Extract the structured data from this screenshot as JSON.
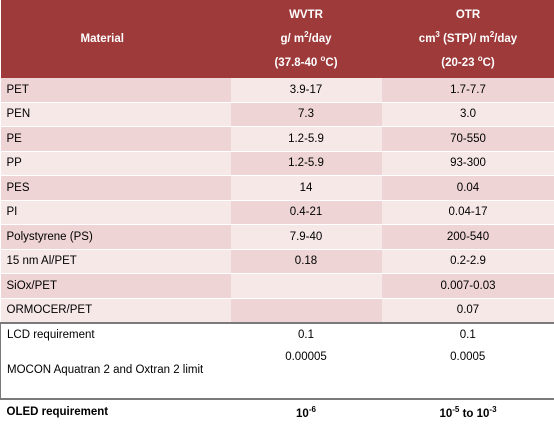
{
  "header": {
    "material": "Material",
    "wvtr_line1": "WVTR",
    "wvtr_line2": "g/ m",
    "wvtr_line2_sup": "2",
    "wvtr_line2_tail": "/day",
    "wvtr_line3": "(37.8-40 ",
    "wvtr_line3_sup": "o",
    "wvtr_line3_tail": "C)",
    "otr_line1": "OTR",
    "otr_line2_a": "cm",
    "otr_line2_sup1": "3",
    "otr_line2_b": " (STP)/ m",
    "otr_line2_sup2": "2",
    "otr_line2_tail": "/day",
    "otr_line3": "(20-23 ",
    "otr_line3_sup": "o",
    "otr_line3_tail": "C)"
  },
  "rows": [
    {
      "material": "PET",
      "wvtr": "3.9-17",
      "otr": "1.7-7.7"
    },
    {
      "material": "PEN",
      "wvtr": "7.3",
      "otr": "3.0"
    },
    {
      "material": "PE",
      "wvtr": "1.2-5.9",
      "otr": "70-550"
    },
    {
      "material": "PP",
      "wvtr": "1.2-5.9",
      "otr": "93-300"
    },
    {
      "material": "PES",
      "wvtr": "14",
      "otr": "0.04"
    },
    {
      "material": "PI",
      "wvtr": "0.4-21",
      "otr": "0.04-17"
    },
    {
      "material": "Polystyrene (PS)",
      "wvtr": "7.9-40",
      "otr": "200-540"
    },
    {
      "material": "15 nm Al/PET",
      "wvtr": "0.18",
      "otr": "0.2-2.9"
    },
    {
      "material": "SiOx/PET",
      "wvtr": "",
      "otr": "0.007-0.03"
    },
    {
      "material": "ORMOCER/PET",
      "wvtr": "",
      "otr": "0.07"
    }
  ],
  "requirements": [
    {
      "material": "LCD requirement",
      "wvtr": "0.1",
      "otr": "0.1"
    },
    {
      "material": "MOCON Aquatran 2 and Oxtran 2 limit",
      "wvtr": "0.00005",
      "otr": "0.0005"
    }
  ],
  "oled": {
    "material": "OLED requirement",
    "wvtr_base": "10",
    "wvtr_exp": "-6",
    "otr_base1": "10",
    "otr_exp1": "-5",
    "otr_mid": " to 10",
    "otr_exp2": "-3"
  }
}
